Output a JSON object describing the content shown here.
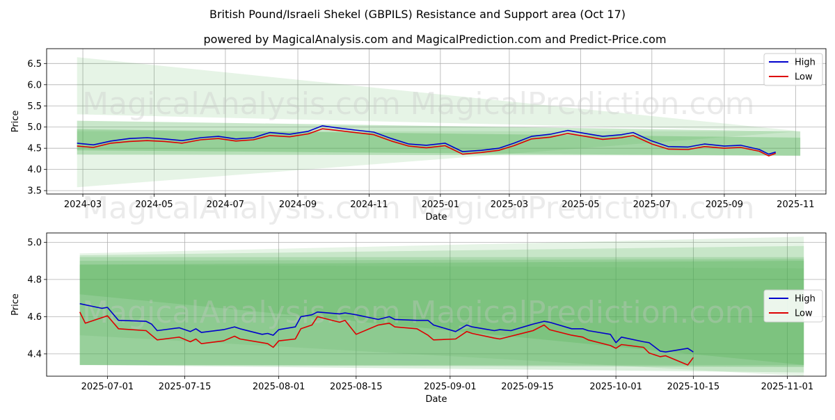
{
  "title": "British Pound/Israeli Shekel (GBPILS) Resistance and Support area (Oct 17)",
  "subtitle": "powered by MagicalAnalysis.com and MagicalPrediction.com and Predict-Price.com",
  "watermarks": [
    "MagicalAnalysis.com",
    "MagicalPrediction.com"
  ],
  "colors": {
    "high": "#0000cc",
    "low": "#dd0000",
    "band": "#4caf50"
  },
  "chart_data": [
    {
      "type": "line",
      "id": "top",
      "xlabel": "Date",
      "ylabel": "Price",
      "ylim": [
        3.42,
        6.85
      ],
      "xlim": [
        "2024-01-30",
        "2025-11-27"
      ],
      "yticks": [
        3.5,
        4.0,
        4.5,
        5.0,
        5.5,
        6.0,
        6.5
      ],
      "ytick_labels": [
        "3.5",
        "4.0",
        "4.5",
        "5.0",
        "5.5",
        "6.0",
        "6.5"
      ],
      "xticks": [
        "2024-03-01",
        "2024-05-01",
        "2024-07-01",
        "2024-09-01",
        "2024-11-01",
        "2025-01-01",
        "2025-03-01",
        "2025-05-01",
        "2025-07-01",
        "2025-09-01",
        "2025-11-01"
      ],
      "xtick_labels": [
        "2024-03",
        "2024-05",
        "2024-07",
        "2024-09",
        "2024-11",
        "2025-01",
        "2025-03",
        "2025-05",
        "2025-07",
        "2025-09",
        "2025-11"
      ],
      "legend": {
        "placement": "top-right",
        "entries": [
          "High",
          "Low"
        ]
      },
      "bands": [
        {
          "x0": "2024-02-25",
          "x1": "2025-11-05",
          "top": [
            6.65,
            4.9
          ],
          "bottom": [
            5.3,
            4.9
          ],
          "opacity": 0.14
        },
        {
          "x0": "2024-02-25",
          "x1": "2025-11-05",
          "top": [
            4.9,
            4.9
          ],
          "bottom": [
            3.58,
            4.9
          ],
          "opacity": 0.14
        },
        {
          "x0": "2024-02-25",
          "x1": "2025-11-05",
          "top": [
            5.15,
            4.9
          ],
          "bottom": [
            4.45,
            4.32
          ],
          "opacity": 0.3
        },
        {
          "x0": "2024-02-25",
          "x1": "2025-11-05",
          "top": [
            4.95,
            4.75
          ],
          "bottom": [
            4.35,
            4.33
          ],
          "opacity": 0.3
        }
      ],
      "series": [
        {
          "name": "High",
          "x": [
            "2024-02-25",
            "2024-03-10",
            "2024-03-25",
            "2024-04-10",
            "2024-04-25",
            "2024-05-10",
            "2024-05-25",
            "2024-06-10",
            "2024-06-25",
            "2024-07-10",
            "2024-07-25",
            "2024-08-08",
            "2024-08-25",
            "2024-09-10",
            "2024-09-22",
            "2024-10-05",
            "2024-10-20",
            "2024-11-05",
            "2024-11-20",
            "2024-12-05",
            "2024-12-20",
            "2025-01-05",
            "2025-01-20",
            "2025-02-05",
            "2025-02-20",
            "2025-03-05",
            "2025-03-20",
            "2025-04-05",
            "2025-04-20",
            "2025-05-05",
            "2025-05-20",
            "2025-06-05",
            "2025-06-15",
            "2025-07-01",
            "2025-07-15",
            "2025-08-01",
            "2025-08-15",
            "2025-09-01",
            "2025-09-15",
            "2025-10-01",
            "2025-10-09",
            "2025-10-15"
          ],
          "values": [
            4.62,
            4.58,
            4.67,
            4.73,
            4.75,
            4.72,
            4.68,
            4.75,
            4.78,
            4.72,
            4.75,
            4.87,
            4.83,
            4.9,
            5.03,
            4.98,
            4.93,
            4.88,
            4.73,
            4.6,
            4.57,
            4.62,
            4.42,
            4.45,
            4.5,
            4.62,
            4.78,
            4.83,
            4.92,
            4.85,
            4.78,
            4.82,
            4.87,
            4.67,
            4.54,
            4.53,
            4.6,
            4.55,
            4.57,
            4.47,
            4.36,
            4.41
          ]
        },
        {
          "name": "Low",
          "x": [
            "2024-02-25",
            "2024-03-10",
            "2024-03-25",
            "2024-04-10",
            "2024-04-25",
            "2024-05-10",
            "2024-05-25",
            "2024-06-10",
            "2024-06-25",
            "2024-07-10",
            "2024-07-25",
            "2024-08-08",
            "2024-08-25",
            "2024-09-10",
            "2024-09-22",
            "2024-10-05",
            "2024-10-20",
            "2024-11-05",
            "2024-11-20",
            "2024-12-05",
            "2024-12-20",
            "2025-01-05",
            "2025-01-20",
            "2025-02-05",
            "2025-02-20",
            "2025-03-05",
            "2025-03-20",
            "2025-04-05",
            "2025-04-20",
            "2025-05-05",
            "2025-05-20",
            "2025-06-05",
            "2025-06-15",
            "2025-07-01",
            "2025-07-15",
            "2025-08-01",
            "2025-08-15",
            "2025-09-01",
            "2025-09-15",
            "2025-10-01",
            "2025-10-09",
            "2025-10-15"
          ],
          "values": [
            4.55,
            4.52,
            4.62,
            4.66,
            4.68,
            4.66,
            4.62,
            4.7,
            4.73,
            4.67,
            4.7,
            4.8,
            4.77,
            4.84,
            4.96,
            4.92,
            4.87,
            4.82,
            4.67,
            4.55,
            4.51,
            4.56,
            4.36,
            4.4,
            4.45,
            4.56,
            4.72,
            4.76,
            4.85,
            4.78,
            4.71,
            4.75,
            4.8,
            4.6,
            4.48,
            4.47,
            4.54,
            4.5,
            4.52,
            4.43,
            4.32,
            4.38
          ]
        }
      ]
    },
    {
      "type": "line",
      "id": "bottom",
      "xlabel": "Date",
      "ylabel": "Price",
      "ylim": [
        4.28,
        5.05
      ],
      "xlim": [
        "2025-06-20",
        "2025-11-08"
      ],
      "yticks": [
        4.4,
        4.6,
        4.8,
        5.0
      ],
      "ytick_labels": [
        "4.4",
        "4.6",
        "4.8",
        "5.0"
      ],
      "xticks": [
        "2025-07-01",
        "2025-07-15",
        "2025-08-01",
        "2025-08-15",
        "2025-09-01",
        "2025-09-15",
        "2025-10-01",
        "2025-10-15",
        "2025-11-01"
      ],
      "xtick_labels": [
        "2025-07-01",
        "2025-07-15",
        "2025-08-01",
        "2025-08-15",
        "2025-09-01",
        "2025-09-15",
        "2025-10-01",
        "2025-10-15",
        "2025-11-01"
      ],
      "legend": {
        "placement": "center-right",
        "entries": [
          "High",
          "Low"
        ]
      },
      "bands": [
        {
          "x0": "2025-06-26",
          "x1": "2025-11-04",
          "top": [
            4.94,
            5.03
          ],
          "bottom": [
            4.5,
            4.28
          ],
          "opacity": 0.14
        },
        {
          "x0": "2025-06-26",
          "x1": "2025-11-04",
          "top": [
            4.93,
            4.98
          ],
          "bottom": [
            4.34,
            4.3
          ],
          "opacity": 0.2
        },
        {
          "x0": "2025-06-26",
          "x1": "2025-11-04",
          "top": [
            4.92,
            4.92
          ],
          "bottom": [
            4.34,
            4.33
          ],
          "opacity": 0.22
        },
        {
          "x0": "2025-06-26",
          "x1": "2025-11-04",
          "top": [
            4.9,
            4.91
          ],
          "bottom": [
            4.34,
            4.34
          ],
          "opacity": 0.22
        },
        {
          "x0": "2025-06-26",
          "x1": "2025-11-04",
          "top": [
            4.88,
            4.9
          ],
          "bottom": [
            4.72,
            4.34
          ],
          "opacity": 0.25
        },
        {
          "x0": "2025-06-26",
          "x1": "2025-11-04",
          "top": [
            4.88,
            4.86
          ],
          "bottom": [
            4.34,
            4.33
          ],
          "opacity": 0.12
        }
      ],
      "series": [
        {
          "name": "High",
          "x": [
            "2025-06-26",
            "2025-06-30",
            "2025-07-01",
            "2025-07-03",
            "2025-07-08",
            "2025-07-09",
            "2025-07-10",
            "2025-07-14",
            "2025-07-16",
            "2025-07-17",
            "2025-07-18",
            "2025-07-22",
            "2025-07-24",
            "2025-07-25",
            "2025-07-29",
            "2025-07-30",
            "2025-07-31",
            "2025-08-01",
            "2025-08-04",
            "2025-08-05",
            "2025-08-07",
            "2025-08-08",
            "2025-08-12",
            "2025-08-13",
            "2025-08-15",
            "2025-08-19",
            "2025-08-21",
            "2025-08-22",
            "2025-08-26",
            "2025-08-28",
            "2025-08-29",
            "2025-09-02",
            "2025-09-04",
            "2025-09-05",
            "2025-09-09",
            "2025-09-10",
            "2025-09-12",
            "2025-09-16",
            "2025-09-18",
            "2025-09-19",
            "2025-09-23",
            "2025-09-25",
            "2025-09-26",
            "2025-09-30",
            "2025-10-01",
            "2025-10-02",
            "2025-10-06",
            "2025-10-07",
            "2025-10-09",
            "2025-10-10",
            "2025-10-14",
            "2025-10-15"
          ],
          "values": [
            4.67,
            4.645,
            4.65,
            4.58,
            4.575,
            4.56,
            4.525,
            4.54,
            4.52,
            4.535,
            4.515,
            4.53,
            4.545,
            4.535,
            4.505,
            4.51,
            4.5,
            4.53,
            4.545,
            4.6,
            4.61,
            4.625,
            4.615,
            4.62,
            4.61,
            4.585,
            4.6,
            4.585,
            4.58,
            4.58,
            4.555,
            4.52,
            4.555,
            4.545,
            4.525,
            4.53,
            4.525,
            4.56,
            4.575,
            4.57,
            4.535,
            4.535,
            4.525,
            4.505,
            4.46,
            4.49,
            4.465,
            4.46,
            4.415,
            4.41,
            4.43,
            4.41
          ]
        },
        {
          "name": "Low",
          "x": [
            "2025-06-26",
            "2025-06-27",
            "2025-07-01",
            "2025-07-03",
            "2025-07-08",
            "2025-07-09",
            "2025-07-10",
            "2025-07-14",
            "2025-07-16",
            "2025-07-17",
            "2025-07-18",
            "2025-07-22",
            "2025-07-24",
            "2025-07-25",
            "2025-07-29",
            "2025-07-30",
            "2025-07-31",
            "2025-08-01",
            "2025-08-04",
            "2025-08-05",
            "2025-08-07",
            "2025-08-08",
            "2025-08-12",
            "2025-08-13",
            "2025-08-15",
            "2025-08-19",
            "2025-08-21",
            "2025-08-22",
            "2025-08-26",
            "2025-08-28",
            "2025-08-29",
            "2025-09-02",
            "2025-09-04",
            "2025-09-05",
            "2025-09-09",
            "2025-09-10",
            "2025-09-12",
            "2025-09-16",
            "2025-09-18",
            "2025-09-19",
            "2025-09-23",
            "2025-09-25",
            "2025-09-26",
            "2025-09-30",
            "2025-10-01",
            "2025-10-02",
            "2025-10-06",
            "2025-10-07",
            "2025-10-09",
            "2025-10-10",
            "2025-10-14",
            "2025-10-15"
          ],
          "values": [
            4.625,
            4.565,
            4.605,
            4.535,
            4.525,
            4.5,
            4.475,
            4.49,
            4.465,
            4.48,
            4.455,
            4.47,
            4.495,
            4.48,
            4.46,
            4.455,
            4.435,
            4.47,
            4.48,
            4.535,
            4.555,
            4.6,
            4.57,
            4.58,
            4.505,
            4.555,
            4.565,
            4.545,
            4.535,
            4.5,
            4.475,
            4.48,
            4.52,
            4.51,
            4.485,
            4.48,
            4.495,
            4.525,
            4.555,
            4.53,
            4.5,
            4.49,
            4.475,
            4.445,
            4.43,
            4.45,
            4.435,
            4.405,
            4.385,
            4.39,
            4.34,
            4.38
          ]
        }
      ]
    }
  ]
}
